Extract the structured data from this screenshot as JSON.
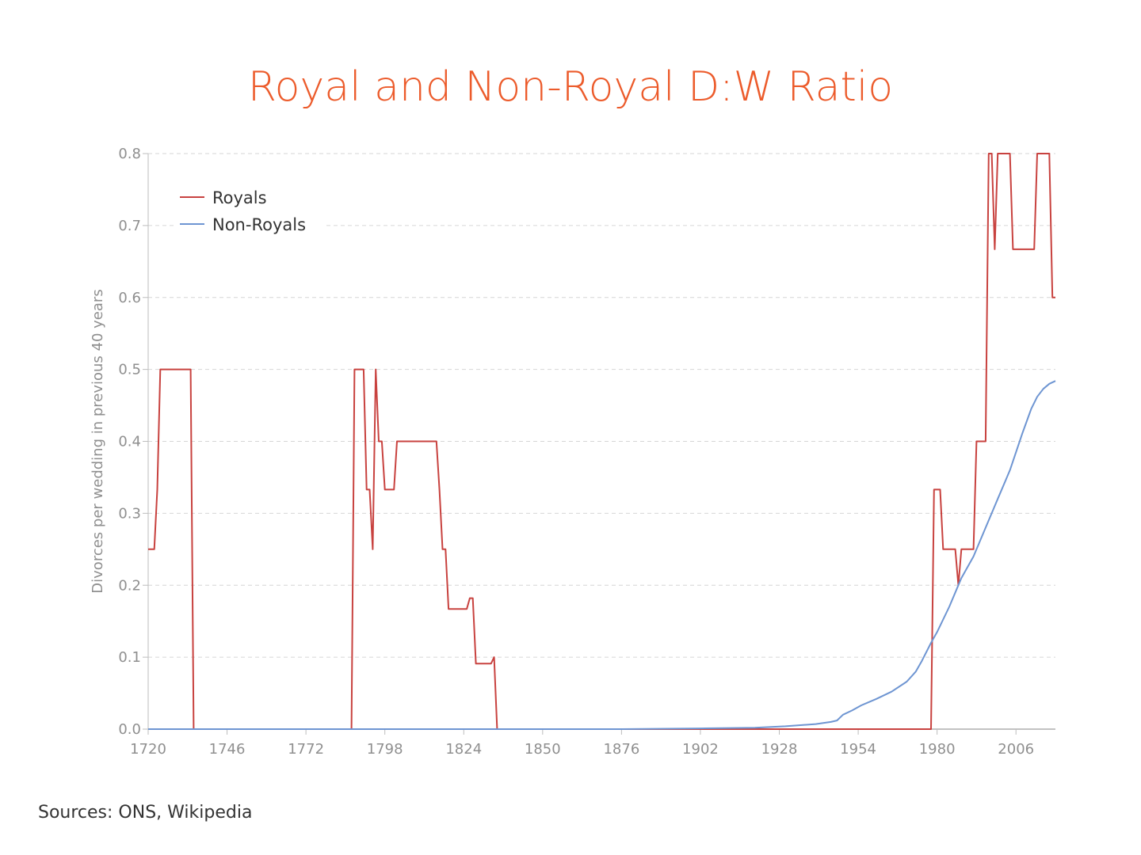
{
  "title": "Royal and Non-Royal D:W Ratio",
  "source": "Sources: ONS, Wikipedia",
  "chart_data": {
    "type": "line",
    "title": "Royal and Non-Royal D:W Ratio",
    "xlabel": "",
    "ylabel": "Divorces per wedding in previous 40 years",
    "xlim": [
      1720,
      2019
    ],
    "ylim": [
      0,
      0.8
    ],
    "x_ticks": [
      1720,
      1746,
      1772,
      1798,
      1824,
      1850,
      1876,
      1902,
      1928,
      1954,
      1980,
      2006
    ],
    "y_ticks": [
      "0.0",
      "0.1",
      "0.2",
      "0.3",
      "0.4",
      "0.5",
      "0.6",
      "0.7",
      "0.8"
    ],
    "grid": "horizontal-dashed",
    "legend_position": "top-left",
    "series": [
      {
        "name": "Royals",
        "color": "#c8423f",
        "points": [
          [
            1720,
            0.25
          ],
          [
            1722,
            0.25
          ],
          [
            1723,
            0.333
          ],
          [
            1724,
            0.5
          ],
          [
            1733,
            0.5
          ],
          [
            1734,
            0.5
          ],
          [
            1735,
            0
          ],
          [
            1787,
            0
          ],
          [
            1788,
            0.5
          ],
          [
            1791,
            0.5
          ],
          [
            1792,
            0.333
          ],
          [
            1793,
            0.333
          ],
          [
            1794,
            0.25
          ],
          [
            1795,
            0.5
          ],
          [
            1796,
            0.4
          ],
          [
            1797,
            0.4
          ],
          [
            1798,
            0.333
          ],
          [
            1801,
            0.333
          ],
          [
            1802,
            0.4
          ],
          [
            1815,
            0.4
          ],
          [
            1816,
            0.333
          ],
          [
            1817,
            0.25
          ],
          [
            1818,
            0.25
          ],
          [
            1819,
            0.167
          ],
          [
            1825,
            0.167
          ],
          [
            1826,
            0.182
          ],
          [
            1827,
            0.182
          ],
          [
            1828,
            0.091
          ],
          [
            1833,
            0.091
          ],
          [
            1834,
            0.1
          ],
          [
            1835,
            0
          ],
          [
            1978,
            0
          ],
          [
            1979,
            0.333
          ],
          [
            1981,
            0.333
          ],
          [
            1982,
            0.25
          ],
          [
            1986,
            0.25
          ],
          [
            1987,
            0.2
          ],
          [
            1988,
            0.25
          ],
          [
            1992,
            0.25
          ],
          [
            1993,
            0.4
          ],
          [
            1996,
            0.4
          ],
          [
            1997,
            0.8
          ],
          [
            1998,
            0.8
          ],
          [
            1999,
            0.667
          ],
          [
            2000,
            0.8
          ],
          [
            2004,
            0.8
          ],
          [
            2005,
            0.667
          ],
          [
            2012,
            0.667
          ],
          [
            2013,
            0.8
          ],
          [
            2017,
            0.8
          ],
          [
            2018,
            0.6
          ],
          [
            2019,
            0.6
          ]
        ]
      },
      {
        "name": "Non-Royals",
        "color": "#6e95d2",
        "points": [
          [
            1720,
            0
          ],
          [
            1876,
            0
          ],
          [
            1902,
            0.001
          ],
          [
            1920,
            0.002
          ],
          [
            1930,
            0.004
          ],
          [
            1940,
            0.007
          ],
          [
            1945,
            0.01
          ],
          [
            1947,
            0.012
          ],
          [
            1949,
            0.02
          ],
          [
            1952,
            0.026
          ],
          [
            1955,
            0.033
          ],
          [
            1960,
            0.042
          ],
          [
            1965,
            0.052
          ],
          [
            1970,
            0.066
          ],
          [
            1973,
            0.08
          ],
          [
            1975,
            0.095
          ],
          [
            1978,
            0.12
          ],
          [
            1980,
            0.135
          ],
          [
            1984,
            0.17
          ],
          [
            1988,
            0.21
          ],
          [
            1992,
            0.24
          ],
          [
            1996,
            0.28
          ],
          [
            2000,
            0.32
          ],
          [
            2004,
            0.36
          ],
          [
            2008,
            0.41
          ],
          [
            2011,
            0.445
          ],
          [
            2013,
            0.462
          ],
          [
            2015,
            0.473
          ],
          [
            2017,
            0.48
          ],
          [
            2019,
            0.484
          ]
        ]
      }
    ]
  }
}
